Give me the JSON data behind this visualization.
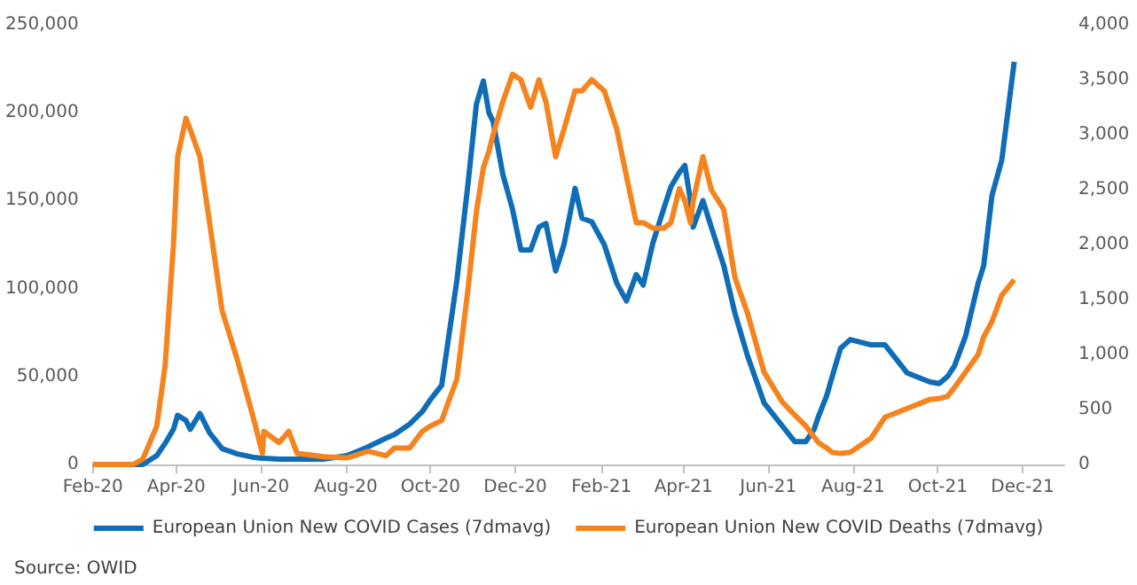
{
  "chart_data": {
    "type": "line",
    "annotations": [
      "Source: OWID"
    ],
    "x": [
      "2020-02-01",
      "2020-03-01",
      "2020-03-08",
      "2020-03-18",
      "2020-03-24",
      "2020-03-30",
      "2020-04-02",
      "2020-04-08",
      "2020-04-11",
      "2020-04-18",
      "2020-04-25",
      "2020-05-04",
      "2020-05-15",
      "2020-05-27",
      "2020-06-02",
      "2020-06-03",
      "2020-06-14",
      "2020-06-21",
      "2020-06-27",
      "2020-07-16",
      "2020-08-02",
      "2020-08-17",
      "2020-08-30",
      "2020-09-05",
      "2020-09-16",
      "2020-09-25",
      "2020-10-01",
      "2020-10-09",
      "2020-10-20",
      "2020-10-28",
      "2020-11-03",
      "2020-11-08",
      "2020-11-12",
      "2020-11-15",
      "2020-11-22",
      "2020-11-29",
      "2020-12-05",
      "2020-12-12",
      "2020-12-18",
      "2020-12-23",
      "2020-12-30",
      "2021-01-05",
      "2021-01-13",
      "2021-01-18",
      "2021-01-25",
      "2021-02-03",
      "2021-02-12",
      "2021-02-19",
      "2021-02-26",
      "2021-03-03",
      "2021-03-10",
      "2021-03-18",
      "2021-03-23",
      "2021-03-29",
      "2021-04-02",
      "2021-04-06",
      "2021-04-08",
      "2021-04-15",
      "2021-04-19",
      "2021-04-21",
      "2021-04-30",
      "2021-05-08",
      "2021-05-17",
      "2021-05-29",
      "2021-06-11",
      "2021-06-20",
      "2021-06-28",
      "2021-07-04",
      "2021-07-07",
      "2021-07-13",
      "2021-07-17",
      "2021-07-23",
      "2021-07-30",
      "2021-08-14",
      "2021-08-24",
      "2021-09-09",
      "2021-09-25",
      "2021-10-02",
      "2021-10-08",
      "2021-10-13",
      "2021-10-21",
      "2021-10-30",
      "2021-11-03",
      "2021-11-09",
      "2021-11-16",
      "2021-11-25"
    ],
    "series": [
      {
        "name": "European Union New COVID Cases (7dmavg)",
        "color": "#0f6db8",
        "values": [
          0,
          0,
          0,
          5000,
          12000,
          20000,
          28000,
          25000,
          20000,
          29000,
          18000,
          9000,
          6000,
          4000,
          3500,
          3500,
          3000,
          3000,
          3000,
          3000,
          5000,
          10000,
          15000,
          17000,
          23000,
          30000,
          37000,
          45000,
          105000,
          160000,
          205000,
          218000,
          200000,
          195000,
          165000,
          145000,
          122000,
          122000,
          135000,
          137000,
          110000,
          125000,
          157000,
          140000,
          138000,
          125000,
          103000,
          93000,
          108000,
          102000,
          126000,
          146000,
          158000,
          166000,
          170000,
          150000,
          135000,
          150000,
          140000,
          135000,
          113000,
          86000,
          62000,
          35000,
          22000,
          13000,
          13000,
          20000,
          27000,
          39000,
          50000,
          66000,
          71000,
          68000,
          68000,
          52000,
          47000,
          46000,
          50000,
          56000,
          73000,
          103000,
          113000,
          153000,
          173000,
          229000
        ]
      },
      {
        "name": "European Union New COVID Deaths (7dmavg)",
        "color": "#f5841f",
        "axis": "y2",
        "values": [
          0,
          0,
          50,
          350,
          900,
          2000,
          2800,
          3150,
          3050,
          2800,
          2200,
          1400,
          950,
          400,
          100,
          300,
          200,
          300,
          100,
          70,
          60,
          120,
          80,
          150,
          150,
          300,
          350,
          400,
          780,
          1600,
          2300,
          2700,
          2850,
          3000,
          3300,
          3550,
          3500,
          3250,
          3500,
          3300,
          2800,
          3050,
          3400,
          3400,
          3500,
          3400,
          3050,
          2620,
          2200,
          2200,
          2150,
          2150,
          2200,
          2510,
          2400,
          2200,
          2400,
          2800,
          2600,
          2500,
          2320,
          1700,
          1380,
          840,
          570,
          450,
          350,
          250,
          200,
          150,
          110,
          100,
          110,
          240,
          430,
          510,
          590,
          600,
          620,
          700,
          840,
          1000,
          1160,
          1300,
          1540,
          1680
        ]
      }
    ],
    "xlim": [
      "2020-02-01",
      "2021-12-31"
    ],
    "xticks": [
      {
        "value": "2020-02-01",
        "label": "Feb-20"
      },
      {
        "value": "2020-04-01",
        "label": "Apr-20"
      },
      {
        "value": "2020-06-01",
        "label": "Jun-20"
      },
      {
        "value": "2020-08-01",
        "label": "Aug-20"
      },
      {
        "value": "2020-10-01",
        "label": "Oct-20"
      },
      {
        "value": "2020-12-01",
        "label": "Dec-20"
      },
      {
        "value": "2021-02-01",
        "label": "Feb-21"
      },
      {
        "value": "2021-04-01",
        "label": "Apr-21"
      },
      {
        "value": "2021-06-01",
        "label": "Jun-21"
      },
      {
        "value": "2021-08-01",
        "label": "Aug-21"
      },
      {
        "value": "2021-10-01",
        "label": "Oct-21"
      },
      {
        "value": "2021-12-01",
        "label": "Dec-21"
      }
    ],
    "ylim": [
      0,
      250000
    ],
    "yticks": [
      0,
      {
        "value": 50000,
        "label": "50,000"
      },
      {
        "value": 100000,
        "label": "100,000"
      },
      {
        "value": 150000,
        "label": "150,000"
      },
      {
        "value": 200000,
        "label": "200,000"
      },
      {
        "value": 250000,
        "label": "250,000"
      }
    ],
    "y2lim": [
      0,
      4000
    ],
    "y2ticks": [
      0,
      500,
      {
        "value": 1000,
        "label": "1,000"
      },
      {
        "value": 1500,
        "label": "1,500"
      },
      {
        "value": 2000,
        "label": "2,000"
      },
      {
        "value": 2500,
        "label": "2,500"
      },
      {
        "value": 3000,
        "label": "3,000"
      },
      {
        "value": 3500,
        "label": "3,500"
      },
      {
        "value": 4000,
        "label": "4,000"
      }
    ],
    "grid": false,
    "legend": "bottom",
    "marker": "none",
    "line_style": "solid"
  }
}
